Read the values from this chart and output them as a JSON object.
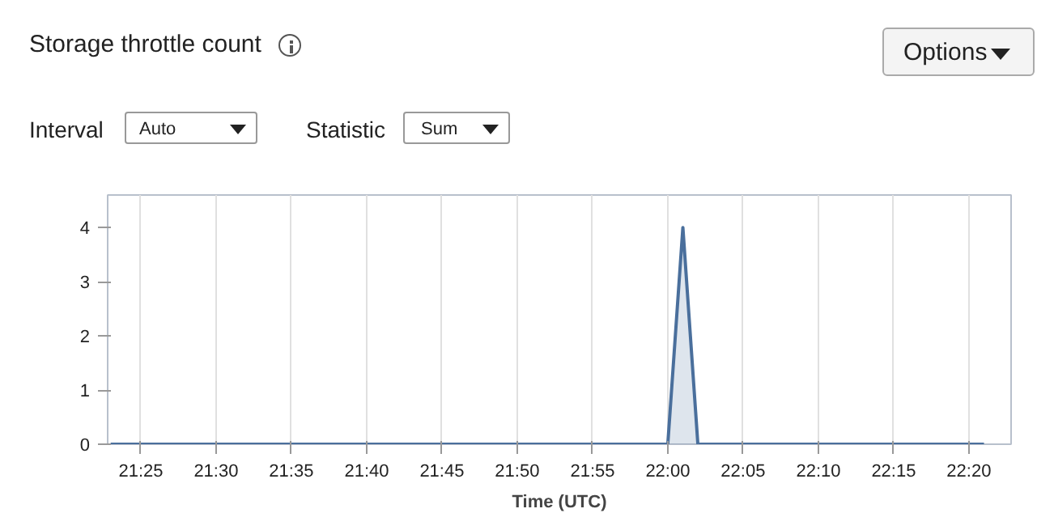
{
  "chart_data": {
    "type": "area",
    "title": "Storage throttle count",
    "xlabel": "Time (UTC)",
    "annotations": [
      "Options",
      "Interval",
      "Auto",
      "Statistic",
      "Sum"
    ],
    "series": [
      {
        "color": "#4a6f9c",
        "x": [
          21.3833,
          22.0,
          22.0167,
          22.0333,
          22.35
        ],
        "values": [
          0,
          0,
          4,
          0,
          0
        ]
      }
    ],
    "xlim": [
      21.38,
      22.38
    ],
    "ylim": [
      0,
      4.6
    ],
    "xticks": [
      {
        "value": 21.4167,
        "label": "21:25"
      },
      {
        "value": 21.5,
        "label": "21:30"
      },
      {
        "value": 21.5833,
        "label": "21:35"
      },
      {
        "value": 21.6667,
        "label": "21:40"
      },
      {
        "value": 21.75,
        "label": "21:45"
      },
      {
        "value": 21.8333,
        "label": "21:50"
      },
      {
        "value": 21.9167,
        "label": "21:55"
      },
      {
        "value": 22.0,
        "label": "22:00"
      },
      {
        "value": 22.0833,
        "label": "22:05"
      },
      {
        "value": 22.1667,
        "label": "22:10"
      },
      {
        "value": 22.25,
        "label": "22:15"
      },
      {
        "value": 22.3333,
        "label": "22:20"
      }
    ],
    "yticks": [
      0,
      1,
      2,
      3,
      4
    ],
    "grid": "x"
  }
}
